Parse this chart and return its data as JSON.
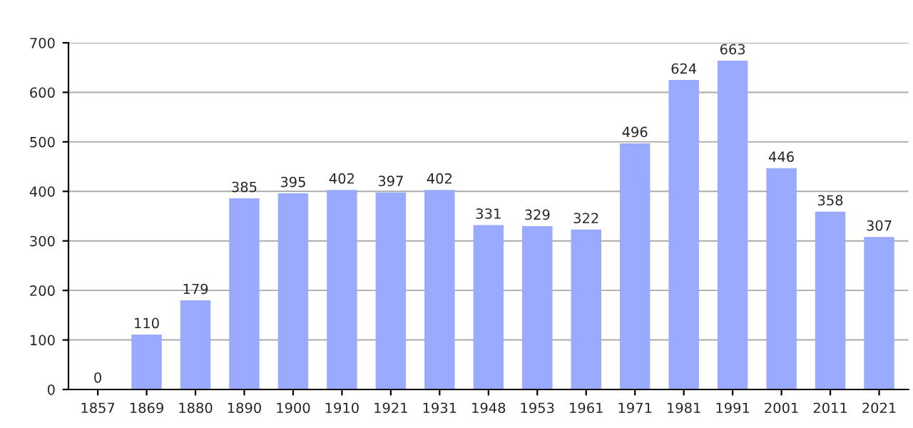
{
  "chart_data": {
    "type": "bar",
    "categories": [
      "1857",
      "1869",
      "1880",
      "1890",
      "1900",
      "1910",
      "1921",
      "1931",
      "1948",
      "1953",
      "1961",
      "1971",
      "1981",
      "1991",
      "2001",
      "2011",
      "2021"
    ],
    "values": [
      0,
      110,
      179,
      385,
      395,
      402,
      397,
      402,
      331,
      329,
      322,
      496,
      624,
      663,
      446,
      358,
      307
    ],
    "color": "#99aaff",
    "ylim": [
      0,
      700
    ],
    "yticks": [
      0,
      100,
      200,
      300,
      400,
      500,
      600,
      700
    ],
    "grid": "y",
    "data_labels": true
  }
}
